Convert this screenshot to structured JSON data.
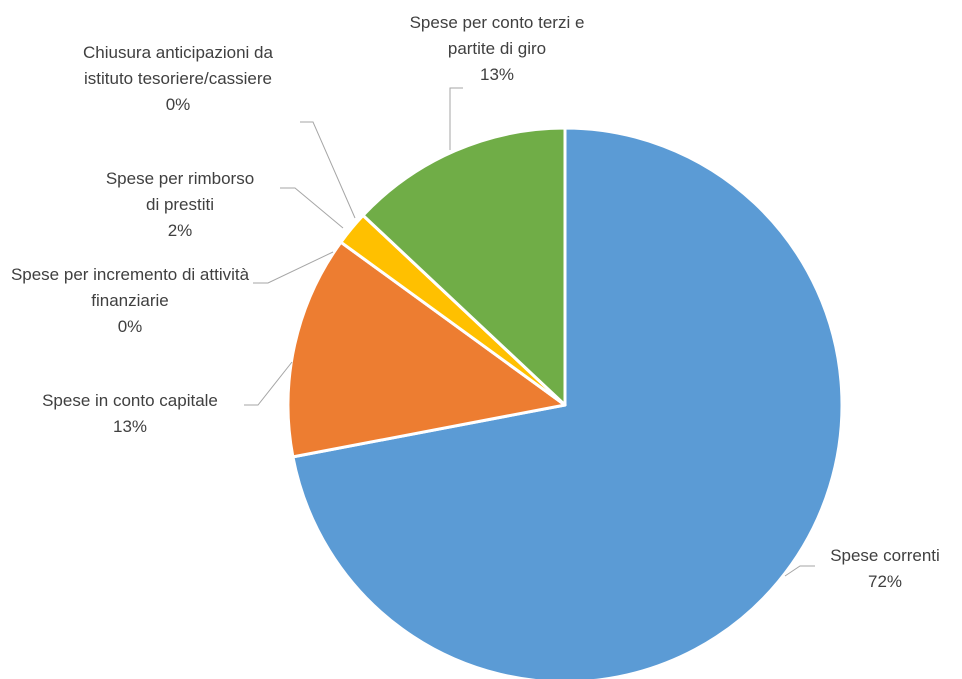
{
  "chart_data": {
    "type": "pie",
    "categories": [
      "Spese correnti",
      "Spese in conto capitale",
      "Spese per incremento di attività finanziarie",
      "Spese per rimborso di prestiti",
      "Chiusura anticipazioni da istituto tesoriere/cassiere",
      "Spese per conto terzi e partite di giro"
    ],
    "values": [
      72,
      13,
      0,
      2,
      0,
      13
    ],
    "value_labels": [
      "72%",
      "13%",
      "0%",
      "2%",
      "0%",
      "13%"
    ],
    "colors": [
      "#5b9bd5",
      "#ed7d31",
      "#a5a5a5",
      "#ffc000",
      "#4472c4",
      "#70ad47"
    ]
  }
}
